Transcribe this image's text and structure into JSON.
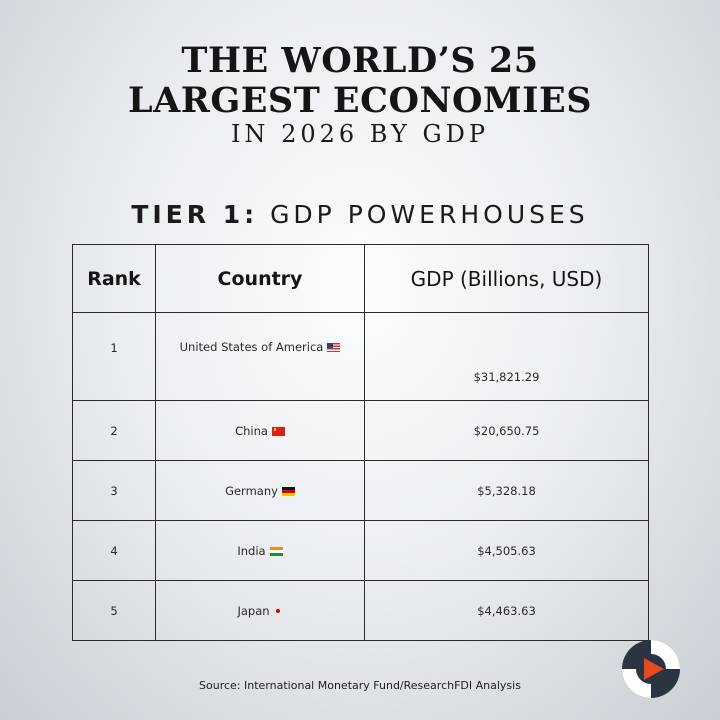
{
  "title": {
    "line1": "THE WORLD’S 25",
    "line2": "LARGEST ECONOMIES",
    "line3": "IN 2026 BY GDP"
  },
  "section": {
    "prefix": "TIER 1:",
    "label": "GDP POWERHOUSES"
  },
  "table": {
    "headers": {
      "rank": "Rank",
      "country": "Country",
      "gdp": "GDP (Billions, USD)"
    },
    "rows": [
      {
        "rank": "1",
        "country": "United States of America",
        "flag": "us-flag-icon",
        "gdp": "$31,821.29"
      },
      {
        "rank": "2",
        "country": "China",
        "flag": "china-flag-icon",
        "gdp": "$20,650.75"
      },
      {
        "rank": "3",
        "country": "Germany",
        "flag": "germany-flag-icon",
        "gdp": "$5,328.18"
      },
      {
        "rank": "4",
        "country": "India",
        "flag": "india-flag-icon",
        "gdp": "$4,505.63"
      },
      {
        "rank": "5",
        "country": "Japan",
        "flag": "japan-flag-icon",
        "gdp": "$4,463.63"
      }
    ]
  },
  "source": "Source: International Monetary Fund/ResearchFDI Analysis",
  "logo": {
    "icon": "researchfdi-logo-icon",
    "colors": {
      "dark": "#2b3440",
      "accent": "#e8491e",
      "light": "#ffffff"
    }
  }
}
